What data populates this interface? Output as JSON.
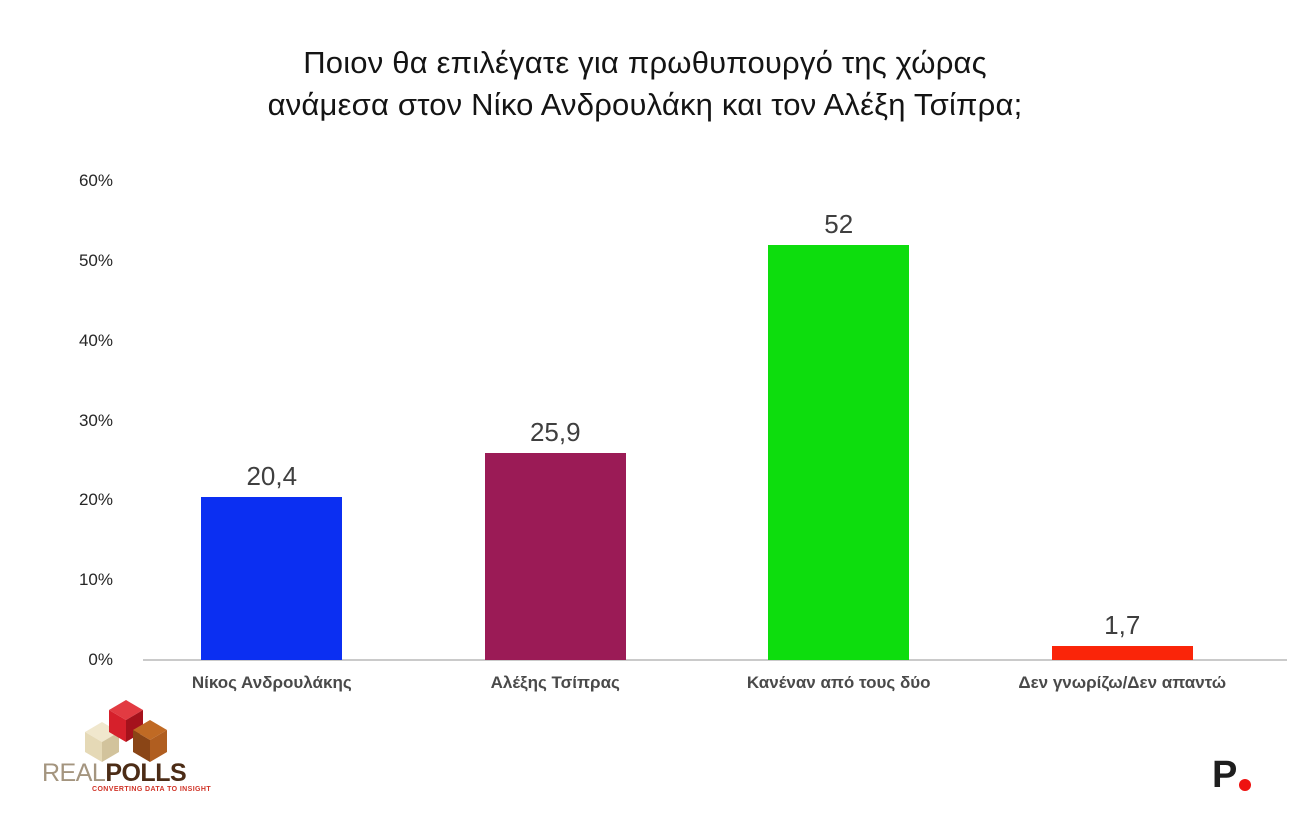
{
  "header": {
    "title_line1": "Ποιον θα επιλέγατε για πρωθυπουργό της χώρας",
    "title_line2": "ανάμεσα στον Νίκο Ανδρουλάκη και τον Αλέξη Τσίπρα;"
  },
  "chart_data": {
    "type": "bar",
    "title": "Ποιον θα επιλέγατε για πρωθυπουργό της χώρας ανάμεσα στον Νίκο Ανδρουλάκη και τον Αλέξη Τσίπρα;",
    "categories": [
      "Νίκος Ανδρουλάκης",
      "Αλέξης Τσίπρας",
      "Κανέναν από τους δύο",
      "Δεν γνωρίζω/Δεν απαντώ"
    ],
    "values": [
      20.4,
      25.9,
      52,
      1.7
    ],
    "value_labels": [
      "20,4",
      "25,9",
      "52",
      "1,7"
    ],
    "bar_colors": [
      "#0b2ff2",
      "#9b1b56",
      "#0ddd0d",
      "#fa2509"
    ],
    "xlabel": "",
    "ylabel": "",
    "ylim": [
      0,
      60
    ],
    "y_ticks": [
      {
        "label": "0%",
        "value": 0
      },
      {
        "label": "10%",
        "value": 10
      },
      {
        "label": "20%",
        "value": 20
      },
      {
        "label": "30%",
        "value": 30
      },
      {
        "label": "40%",
        "value": 40
      },
      {
        "label": "50%",
        "value": 50
      },
      {
        "label": "60%",
        "value": 60
      }
    ],
    "grid": false,
    "legend": false,
    "axis_line_color": "#cacaca",
    "value_label_color": "#3f3f3f",
    "category_label_color": "#4a4a4a"
  },
  "footer": {
    "realpolls": {
      "brand_real": "REAL",
      "brand_polls": "POLLS",
      "tagline": "CONVERTING DATA TO INSIGHT",
      "brand_color_real": "#a4957f",
      "brand_color_polls": "#4c2c16",
      "tagline_color": "#d03428"
    },
    "publisher": {
      "letter": "P",
      "dot_color": "#ee1210"
    }
  }
}
